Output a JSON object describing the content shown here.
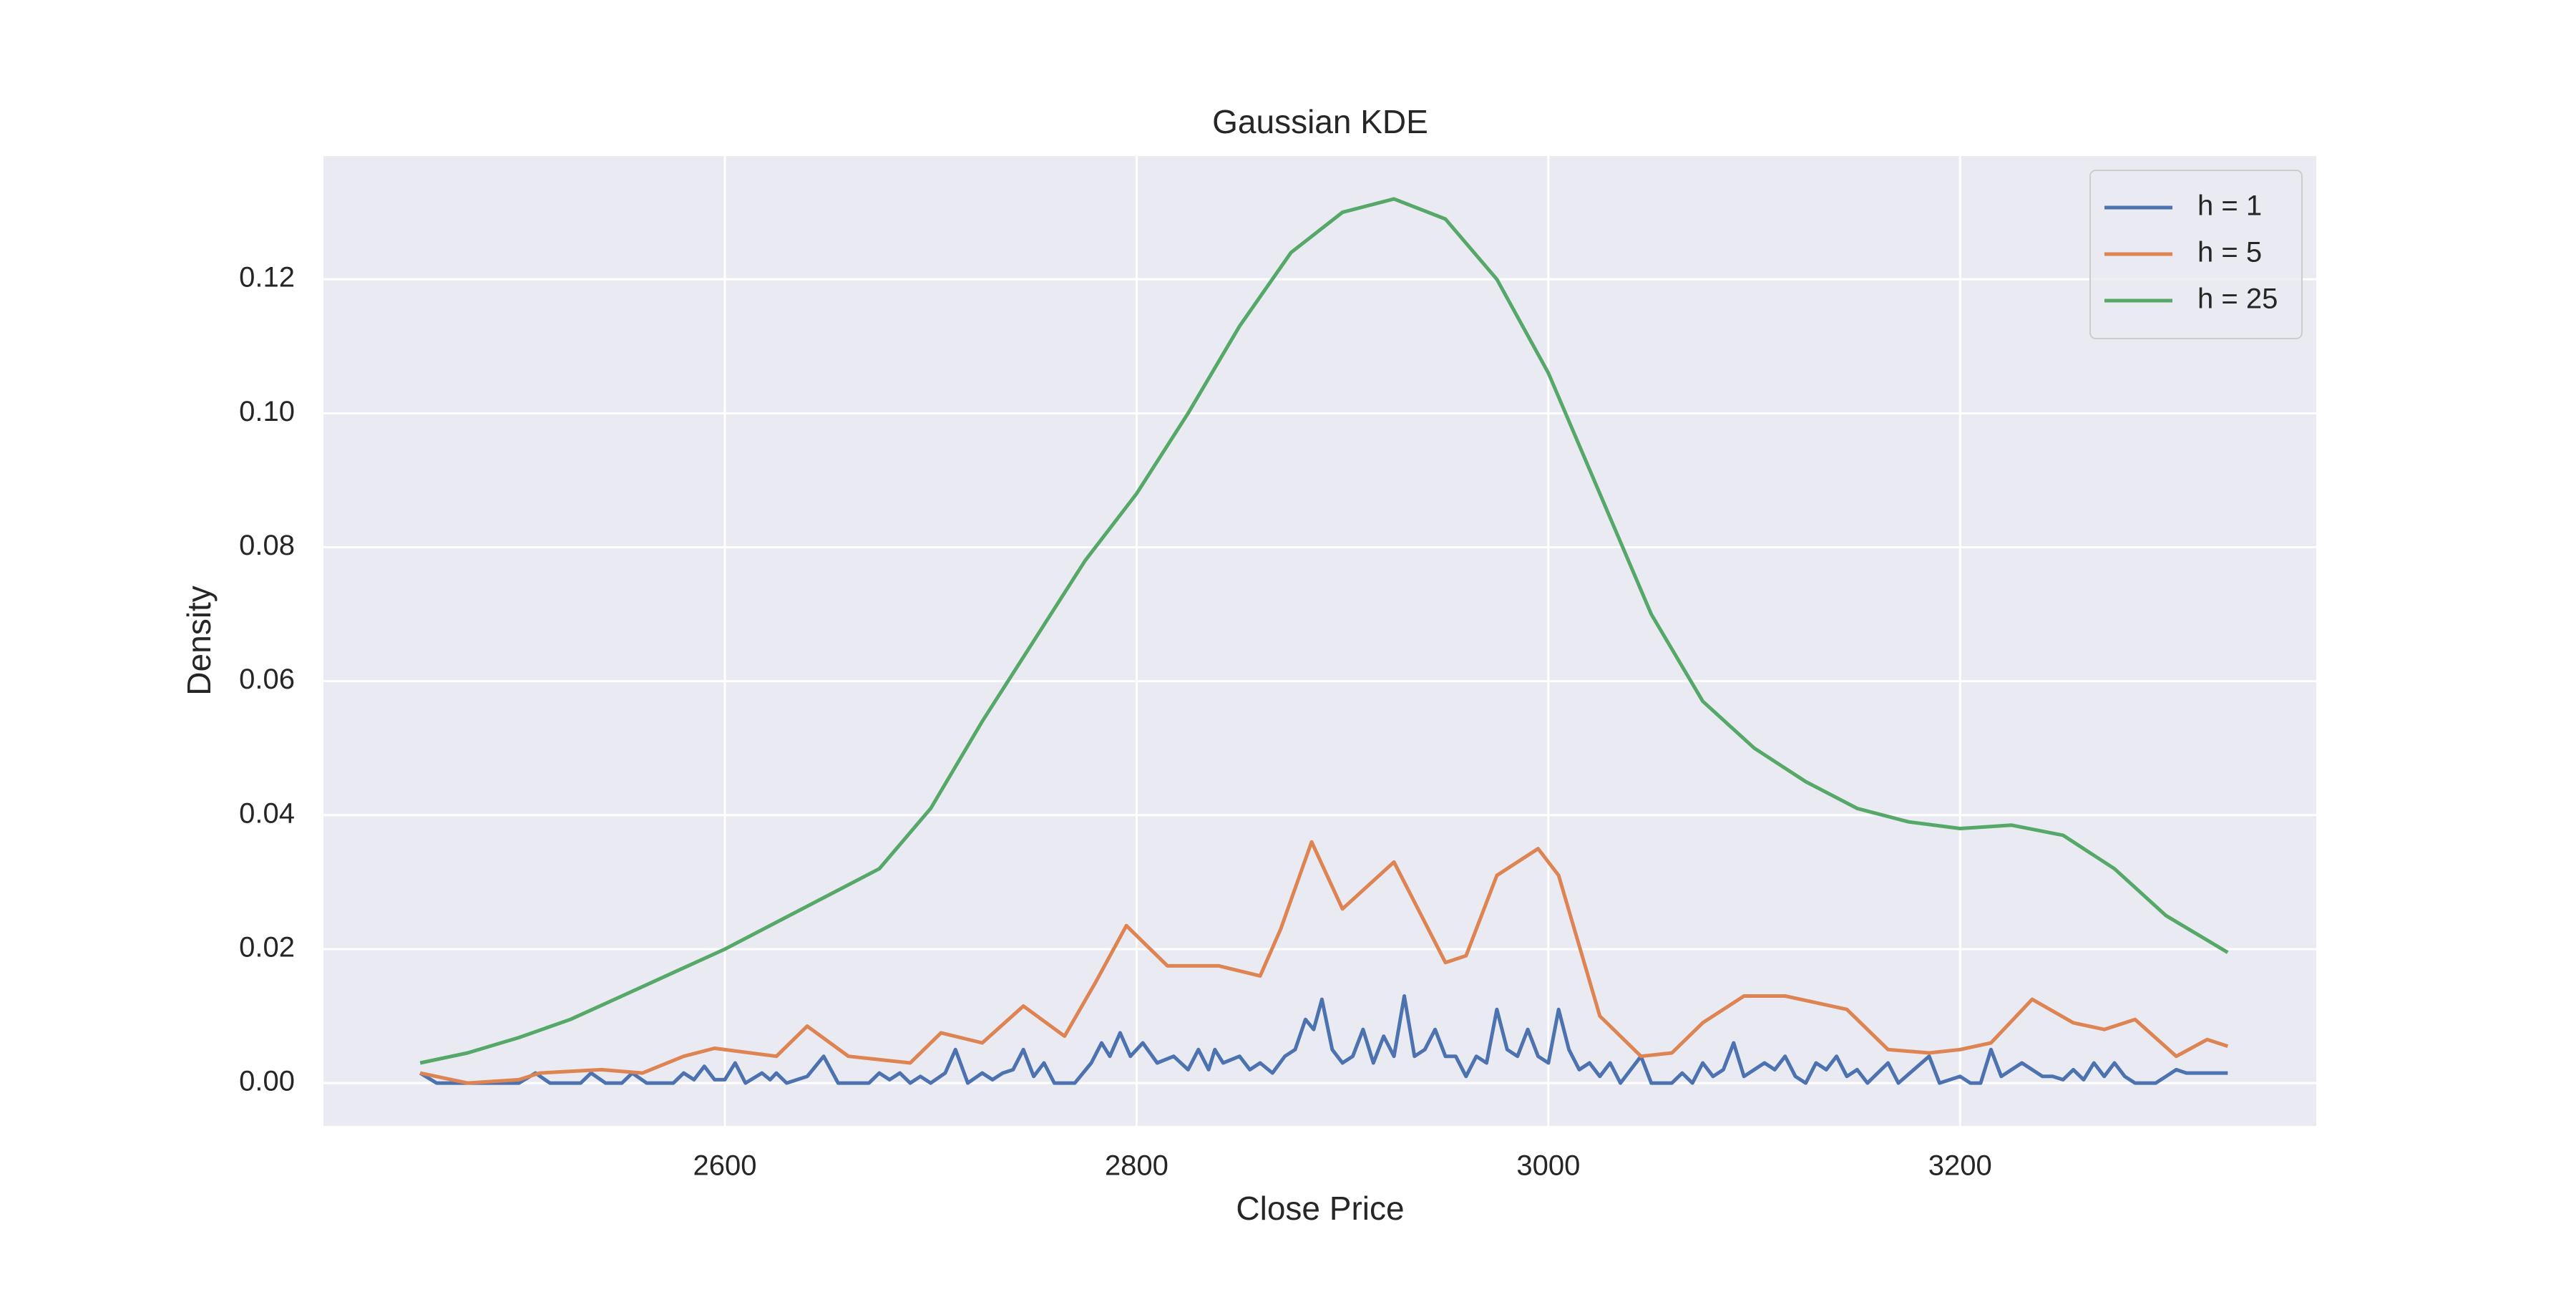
{
  "chart_data": {
    "type": "line",
    "title": "Gaussian KDE",
    "x_label": "Close Price",
    "y_label": "Density",
    "xlim": [
      2405,
      3373
    ],
    "ylim": [
      -0.0064,
      0.1384
    ],
    "xticks": [
      2600,
      2800,
      3000,
      3200
    ],
    "yticks": [
      {
        "value": 0,
        "label": "0.00"
      },
      {
        "value": 0.02,
        "label": "0.02"
      },
      {
        "value": 0.04,
        "label": "0.04"
      },
      {
        "value": 0.06,
        "label": "0.06"
      },
      {
        "value": 0.08,
        "label": "0.08"
      },
      {
        "value": 0.1,
        "label": "0.10"
      },
      {
        "value": 0.12,
        "label": "0.12"
      }
    ],
    "grid": true,
    "legend": "upper right",
    "series": [
      {
        "name": "h = 1",
        "color": "#4c72b0",
        "x": [
          2452,
          2460,
          2500,
          2508,
          2515,
          2530,
          2535,
          2542,
          2550,
          2555,
          2562,
          2575,
          2580,
          2585,
          2590,
          2595,
          2600,
          2605,
          2610,
          2618,
          2622,
          2625,
          2630,
          2640,
          2648,
          2655,
          2670,
          2675,
          2680,
          2685,
          2690,
          2695,
          2700,
          2707,
          2712,
          2718,
          2725,
          2730,
          2735,
          2740,
          2745,
          2750,
          2755,
          2760,
          2770,
          2778,
          2783,
          2787,
          2792,
          2797,
          2803,
          2810,
          2818,
          2825,
          2830,
          2835,
          2838,
          2842,
          2850,
          2855,
          2860,
          2866,
          2872,
          2877,
          2882,
          2886,
          2890,
          2895,
          2900,
          2905,
          2910,
          2915,
          2920,
          2925,
          2930,
          2935,
          2940,
          2945,
          2950,
          2955,
          2960,
          2965,
          2970,
          2975,
          2980,
          2985,
          2990,
          2995,
          3000,
          3005,
          3010,
          3015,
          3020,
          3025,
          3030,
          3035,
          3045,
          3050,
          3060,
          3065,
          3070,
          3075,
          3080,
          3085,
          3090,
          3095,
          3100,
          3105,
          3110,
          3115,
          3120,
          3125,
          3130,
          3135,
          3140,
          3145,
          3150,
          3155,
          3165,
          3170,
          3185,
          3190,
          3200,
          3205,
          3210,
          3215,
          3220,
          3225,
          3230,
          3235,
          3240,
          3245,
          3250,
          3255,
          3260,
          3265,
          3270,
          3275,
          3280,
          3285,
          3295,
          3300,
          3305,
          3310,
          3320,
          3330
        ],
        "values": [
          0.0015,
          0,
          0,
          0.0015,
          0,
          0,
          0.0015,
          0,
          0,
          0.0015,
          0,
          0,
          0.0015,
          0.0005,
          0.0025,
          0.0005,
          0.0005,
          0.003,
          0,
          0.0015,
          0.0005,
          0.0015,
          0,
          0.001,
          0.004,
          0,
          0,
          0.0015,
          0.0005,
          0.0015,
          0,
          0.001,
          0,
          0.0015,
          0.005,
          0,
          0.0015,
          0.0005,
          0.0015,
          0.002,
          0.005,
          0.001,
          0.003,
          0,
          0,
          0.003,
          0.006,
          0.004,
          0.0075,
          0.004,
          0.006,
          0.003,
          0.004,
          0.002,
          0.005,
          0.002,
          0.005,
          0.003,
          0.004,
          0.002,
          0.003,
          0.0015,
          0.004,
          0.005,
          0.0095,
          0.008,
          0.0125,
          0.005,
          0.003,
          0.004,
          0.008,
          0.003,
          0.007,
          0.004,
          0.013,
          0.004,
          0.005,
          0.008,
          0.004,
          0.004,
          0.001,
          0.004,
          0.003,
          0.011,
          0.005,
          0.004,
          0.008,
          0.004,
          0.003,
          0.011,
          0.005,
          0.002,
          0.003,
          0.001,
          0.003,
          0,
          0.004,
          0,
          0,
          0.0015,
          0,
          0.003,
          0.001,
          0.002,
          0.006,
          0.001,
          0.002,
          0.003,
          0.002,
          0.004,
          0.001,
          0,
          0.003,
          0.002,
          0.004,
          0.001,
          0.002,
          0,
          0.003,
          0,
          0.004,
          0,
          0.001,
          0,
          0,
          0.005,
          0.001,
          0.002,
          0.003,
          0.002,
          0.001,
          0.001,
          0.0005,
          0.002,
          0.0005,
          0.003,
          0.001,
          0.003,
          0.001,
          0,
          0,
          0.001,
          0.002,
          0.0015,
          0.0015,
          0.0015
        ]
      },
      {
        "name": "h = 5",
        "color": "#dd8452",
        "x": [
          2452,
          2475,
          2500,
          2510,
          2540,
          2560,
          2580,
          2595,
          2625,
          2640,
          2660,
          2690,
          2705,
          2725,
          2745,
          2765,
          2780,
          2795,
          2815,
          2840,
          2860,
          2870,
          2885,
          2900,
          2925,
          2950,
          2960,
          2975,
          2995,
          3005,
          3025,
          3045,
          3060,
          3075,
          3095,
          3115,
          3130,
          3145,
          3165,
          3185,
          3200,
          3215,
          3235,
          3255,
          3270,
          3285,
          3305,
          3320,
          3330
        ],
        "values": [
          0.0015,
          0,
          0.0005,
          0.0015,
          0.002,
          0.0015,
          0.004,
          0.0052,
          0.004,
          0.0085,
          0.004,
          0.003,
          0.0075,
          0.006,
          0.0115,
          0.007,
          0.015,
          0.0235,
          0.0175,
          0.0175,
          0.016,
          0.023,
          0.036,
          0.026,
          0.033,
          0.018,
          0.019,
          0.031,
          0.035,
          0.031,
          0.01,
          0.004,
          0.0045,
          0.009,
          0.013,
          0.013,
          0.012,
          0.011,
          0.005,
          0.0045,
          0.005,
          0.006,
          0.0125,
          0.009,
          0.008,
          0.0095,
          0.004,
          0.0065,
          0.0055
        ]
      },
      {
        "name": "h = 25",
        "color": "#55a868",
        "x": [
          2452,
          2475,
          2500,
          2525,
          2550,
          2575,
          2600,
          2625,
          2650,
          2675,
          2700,
          2725,
          2750,
          2775,
          2800,
          2825,
          2850,
          2875,
          2900,
          2925,
          2950,
          2975,
          3000,
          3025,
          3050,
          3075,
          3100,
          3125,
          3150,
          3175,
          3200,
          3225,
          3250,
          3275,
          3300,
          3330
        ],
        "values": [
          0.003,
          0.0045,
          0.0068,
          0.0095,
          0.013,
          0.0165,
          0.02,
          0.024,
          0.028,
          0.032,
          0.041,
          0.054,
          0.066,
          0.078,
          0.088,
          0.1,
          0.113,
          0.124,
          0.13,
          0.132,
          0.129,
          0.12,
          0.106,
          0.088,
          0.07,
          0.057,
          0.05,
          0.045,
          0.041,
          0.039,
          0.038,
          0.0385,
          0.037,
          0.032,
          0.025,
          0.0195
        ]
      }
    ]
  }
}
